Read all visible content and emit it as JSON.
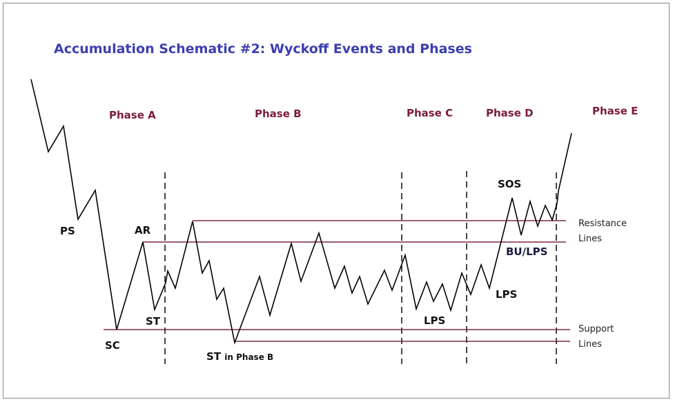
{
  "title": "Accumulation Schematic #2: Wyckoff Events and Phases",
  "phases": [
    "Phase A",
    "Phase B",
    "Phase C",
    "Phase D",
    "Phase E"
  ],
  "events": {
    "ps": "PS",
    "sc": "SC",
    "ar": "AR",
    "st": "ST",
    "st_phase_b_main": "ST",
    "st_phase_b_suffix": "in Phase B",
    "lps_c": "LPS",
    "lps_d": "LPS",
    "sos": "SOS",
    "bu_lps": "BU/LPS"
  },
  "legend": {
    "resistance_1": "Resistance",
    "resistance_2": "Lines",
    "support_1": "Support",
    "support_2": "Lines"
  },
  "colors": {
    "title": "#3a3fae",
    "phase": "#7a1c3c",
    "level_lines": "#7a2a40",
    "price": "#000000"
  }
}
